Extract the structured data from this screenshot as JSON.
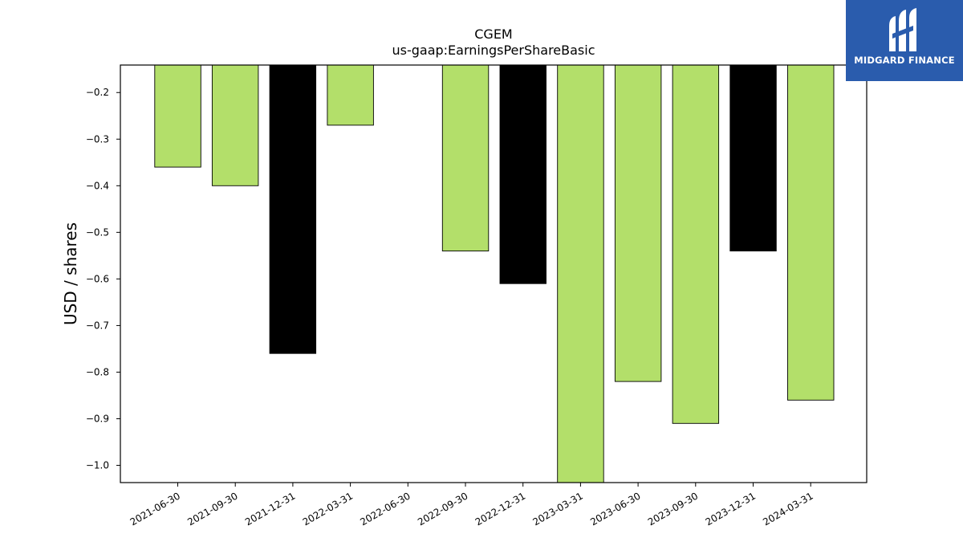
{
  "chart_data": {
    "type": "bar",
    "title": "CGEM",
    "subtitle": "us-gaap:EarningsPerShareBasic",
    "xlabel": "",
    "ylabel": "USD / shares",
    "categories": [
      "2021-06-30",
      "2021-09-30",
      "2021-12-31",
      "2022-03-31",
      "2022-06-30",
      "2022-09-30",
      "2022-12-31",
      "2023-03-31",
      "2023-06-30",
      "2023-09-30",
      "2023-12-31",
      "2024-03-31"
    ],
    "bars": [
      {
        "category": "2021-06-30",
        "value": -0.36,
        "color": "#b3df6a"
      },
      {
        "category": "2021-09-30",
        "value": -0.4,
        "color": "#b3df6a"
      },
      {
        "category": "2021-12-31",
        "value": -0.76,
        "color": "#000000"
      },
      {
        "category": "2022-03-31",
        "value": -0.27,
        "color": "#b3df6a"
      },
      {
        "category": "2022-09-30",
        "value": -0.54,
        "color": "#b3df6a"
      },
      {
        "category": "2022-12-31",
        "value": -0.61,
        "color": "#000000"
      },
      {
        "category": "2023-03-31",
        "value": -1.06,
        "color": "#b3df6a"
      },
      {
        "category": "2023-06-30",
        "value": -0.82,
        "color": "#b3df6a"
      },
      {
        "category": "2023-09-30",
        "value": -0.91,
        "color": "#b3df6a"
      },
      {
        "category": "2023-12-31",
        "value": -0.54,
        "color": "#000000"
      },
      {
        "category": "2024-03-31",
        "value": -0.86,
        "color": "#b3df6a"
      }
    ],
    "ylim": [
      -1.037,
      -0.141
    ],
    "yticks": [
      -0.2,
      -0.3,
      -0.4,
      -0.5,
      -0.6,
      -0.7,
      -0.8,
      -0.9,
      -1.0
    ],
    "ytick_labels": [
      "−0.2",
      "−0.3",
      "−0.4",
      "−0.5",
      "−0.6",
      "−0.7",
      "−0.8",
      "−0.9",
      "−1.0"
    ],
    "grid": false,
    "legend": "none"
  },
  "logo": {
    "text": "MIDGARD FINANCE"
  }
}
